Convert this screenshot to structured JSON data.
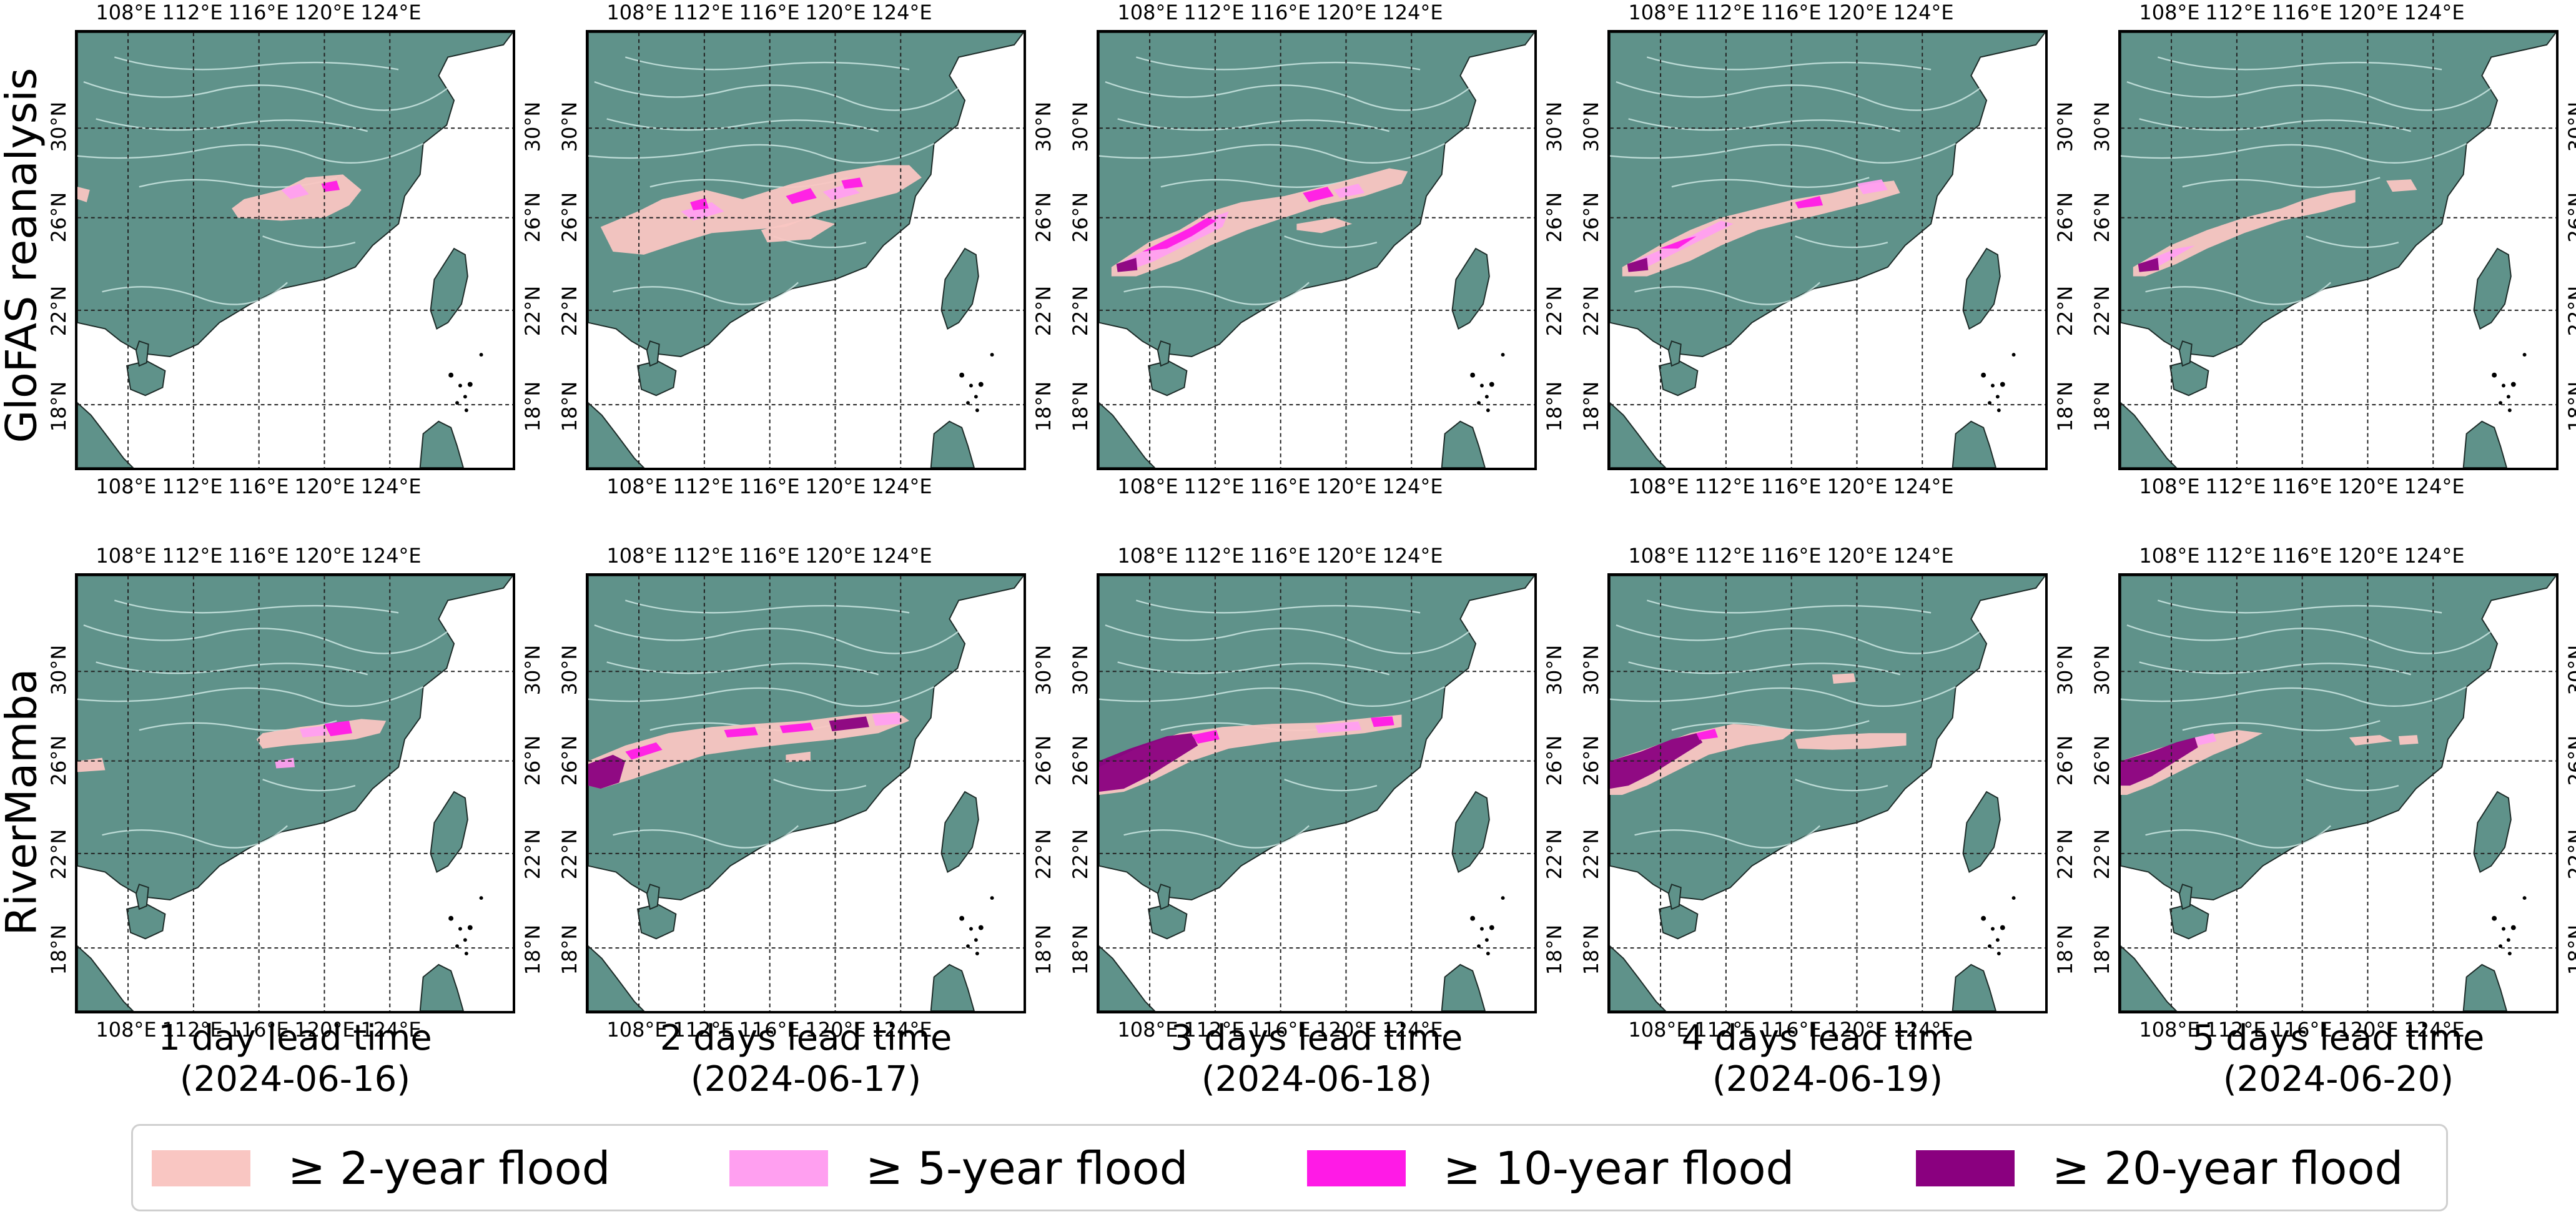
{
  "colors": {
    "land": "#5f928a",
    "ocean": "#ffffff",
    "river": "#d9f2ee",
    "flood_2": "#f9c6c2",
    "flood_5": "#ff9ff0",
    "flood_10": "#ff1ae6",
    "flood_20": "#8a007f"
  },
  "rows": [
    {
      "label": "GloFAS reanalysis"
    },
    {
      "label": "RiverMamba"
    }
  ],
  "lon_ticks": [
    "108°E",
    "112°E",
    "116°E",
    "120°E",
    "124°E"
  ],
  "lat_ticks": [
    "30°N",
    "26°N",
    "22°N",
    "18°N"
  ],
  "columns": [
    {
      "lead": "1 day lead time",
      "date": "(2024-06-16)"
    },
    {
      "lead": "2 days lead time",
      "date": "(2024-06-17)"
    },
    {
      "lead": "3 days lead time",
      "date": "(2024-06-18)"
    },
    {
      "lead": "4 days lead time",
      "date": "(2024-06-19)"
    },
    {
      "lead": "5 days lead time",
      "date": "(2024-06-20)"
    }
  ],
  "legend": [
    {
      "label": "≥  2-year flood",
      "color": "#f9c6c2"
    },
    {
      "label": "≥  5-year flood",
      "color": "#ff9ff0"
    },
    {
      "label": "≥  10-year flood",
      "color": "#ff1ae6"
    },
    {
      "label": "≥  20-year flood",
      "color": "#8a007f"
    }
  ]
}
